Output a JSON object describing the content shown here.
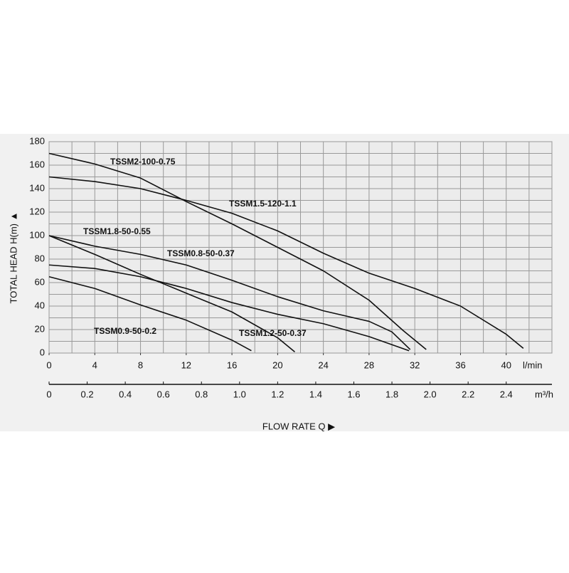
{
  "chart_data": {
    "type": "line",
    "x_label": "FLOW RATE Q ▶",
    "y_label": "TOTAL HEAD H(m) ▲",
    "x_unit": "l/min",
    "x2_unit": "m³/h",
    "xlim": [
      0,
      44
    ],
    "xticks": [
      0,
      4,
      8,
      12,
      16,
      20,
      24,
      28,
      32,
      36,
      40
    ],
    "xgrid": [
      0,
      2,
      4,
      6,
      8,
      10,
      12,
      14,
      16,
      18,
      20,
      22,
      24,
      26,
      28,
      30,
      32,
      34,
      36,
      38,
      40,
      42,
      44
    ],
    "x2lim": [
      0,
      2.64
    ],
    "x2ticks": [
      0,
      0.2,
      0.4,
      0.6,
      0.8,
      {
        "value": 1,
        "label": "1.0"
      },
      1.2,
      1.4,
      1.6,
      1.8,
      {
        "value": 2,
        "label": "2.0"
      },
      2.2,
      2.4
    ],
    "ylim": [
      0,
      180
    ],
    "yticks": [
      0,
      20,
      40,
      60,
      80,
      100,
      120,
      140,
      160,
      180
    ],
    "ygrid": [
      0,
      10,
      20,
      30,
      40,
      50,
      60,
      70,
      80,
      90,
      100,
      110,
      120,
      130,
      140,
      150,
      160,
      170,
      180
    ],
    "grid": true,
    "series": [
      {
        "name": "TSSM2-100-0.75",
        "color": "#111111",
        "x": [
          0,
          4,
          8,
          12,
          16,
          20,
          24,
          28,
          31,
          33
        ],
        "values": [
          170,
          161,
          149,
          129,
          110,
          90,
          70,
          45,
          19,
          3
        ]
      },
      {
        "name": "TSSM1.5-120-1.1",
        "color": "#111111",
        "x": [
          0,
          4,
          8,
          12,
          16,
          20,
          24,
          28,
          32,
          36,
          40,
          41.5
        ],
        "values": [
          150,
          146,
          140,
          130,
          119,
          104,
          85,
          68,
          55,
          40,
          16,
          4
        ]
      },
      {
        "name": "TSSM1.8-50-0.55",
        "color": "#111111",
        "x": [
          0,
          4,
          8,
          12,
          16,
          20,
          24,
          28,
          30,
          31.6
        ],
        "values": [
          100,
          91,
          84,
          75,
          62,
          48,
          36,
          27,
          18,
          3
        ]
      },
      {
        "name": "TSSM0.8-50-0.37",
        "color": "#111111",
        "x": [
          0,
          4,
          8,
          12,
          16,
          20,
          21.5
        ],
        "values": [
          100,
          84,
          67,
          51,
          35,
          13,
          1
        ]
      },
      {
        "name": "TSSM1.2-50-0.37",
        "color": "#111111",
        "x": [
          0,
          4,
          8,
          12,
          16,
          20,
          24,
          28,
          31.5
        ],
        "values": [
          75,
          72,
          65,
          55,
          43,
          33,
          25,
          14,
          2
        ]
      },
      {
        "name": "TSSM0.9-50-0.2",
        "color": "#111111",
        "x": [
          0,
          4,
          8,
          12,
          16,
          17.7
        ],
        "values": [
          65,
          55,
          41,
          28,
          11,
          2
        ]
      }
    ]
  }
}
